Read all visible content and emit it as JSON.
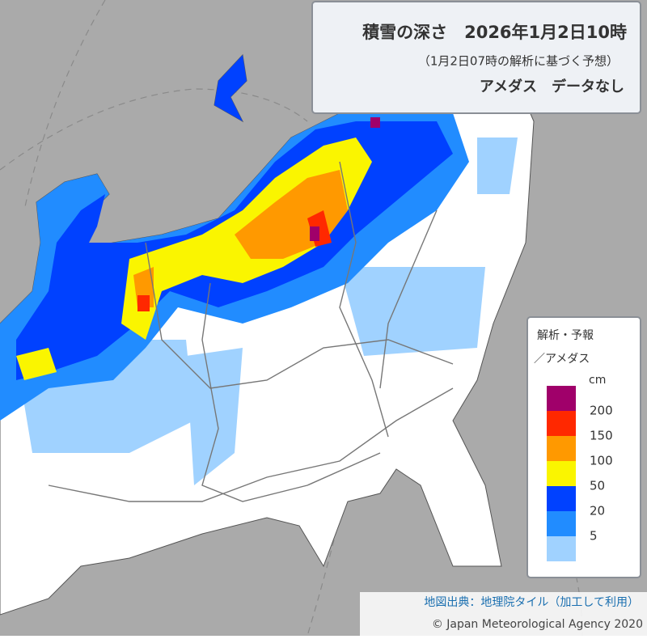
{
  "title": "積雪の深さ　2026年1月2日10時",
  "subtitle": "（1月2日07時の解析に基づく予想）",
  "note": "アメダス　データなし",
  "legend": {
    "title_lines": [
      "解析・予報",
      "／アメダス"
    ],
    "unit": "cm",
    "levels": [
      200,
      150,
      100,
      50,
      20,
      5
    ],
    "colors": [
      "#a0006a",
      "#ff2800",
      "#ff9900",
      "#faf500",
      "#0041ff",
      "#218cff",
      "#a0d2ff"
    ]
  },
  "attribution": {
    "source": "地図出典：地理院タイル（加工して利用）",
    "copyright": "© Japan Meteorological Agency 2020"
  }
}
